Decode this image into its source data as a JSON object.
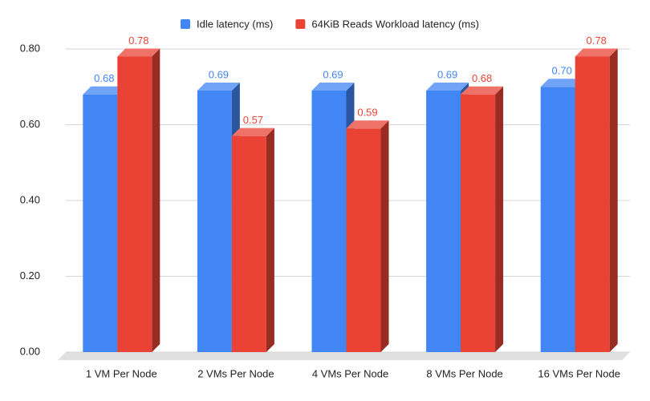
{
  "chart_data": {
    "type": "bar3d",
    "categories": [
      "1 VM Per Node",
      "2 VMs Per Node",
      "4 VMs Per Node",
      "8 VMs Per Node",
      "16 VMs Per Node"
    ],
    "series": [
      {
        "name": "Idle latency (ms)",
        "color": "#4285f4",
        "values": [
          0.68,
          0.69,
          0.69,
          0.69,
          0.7
        ],
        "value_labels": [
          "0.68",
          "0.69",
          "0.69",
          "0.69",
          "0.70"
        ]
      },
      {
        "name": "64KiB Reads Workload latency (ms)",
        "color": "#ea4335",
        "values": [
          0.78,
          0.57,
          0.59,
          0.68,
          0.78
        ],
        "value_labels": [
          "0.78",
          "0.57",
          "0.59",
          "0.68",
          "0.78"
        ]
      }
    ],
    "ylim": [
      0,
      0.8
    ],
    "yticks": [
      {
        "value": 0,
        "label": "0.00"
      },
      {
        "value": 0.2,
        "label": "0.20"
      },
      {
        "value": 0.4,
        "label": "0.40"
      },
      {
        "value": 0.6,
        "label": "0.60"
      },
      {
        "value": 0.8,
        "label": "0.80"
      }
    ],
    "grid": true,
    "legend": "top"
  }
}
